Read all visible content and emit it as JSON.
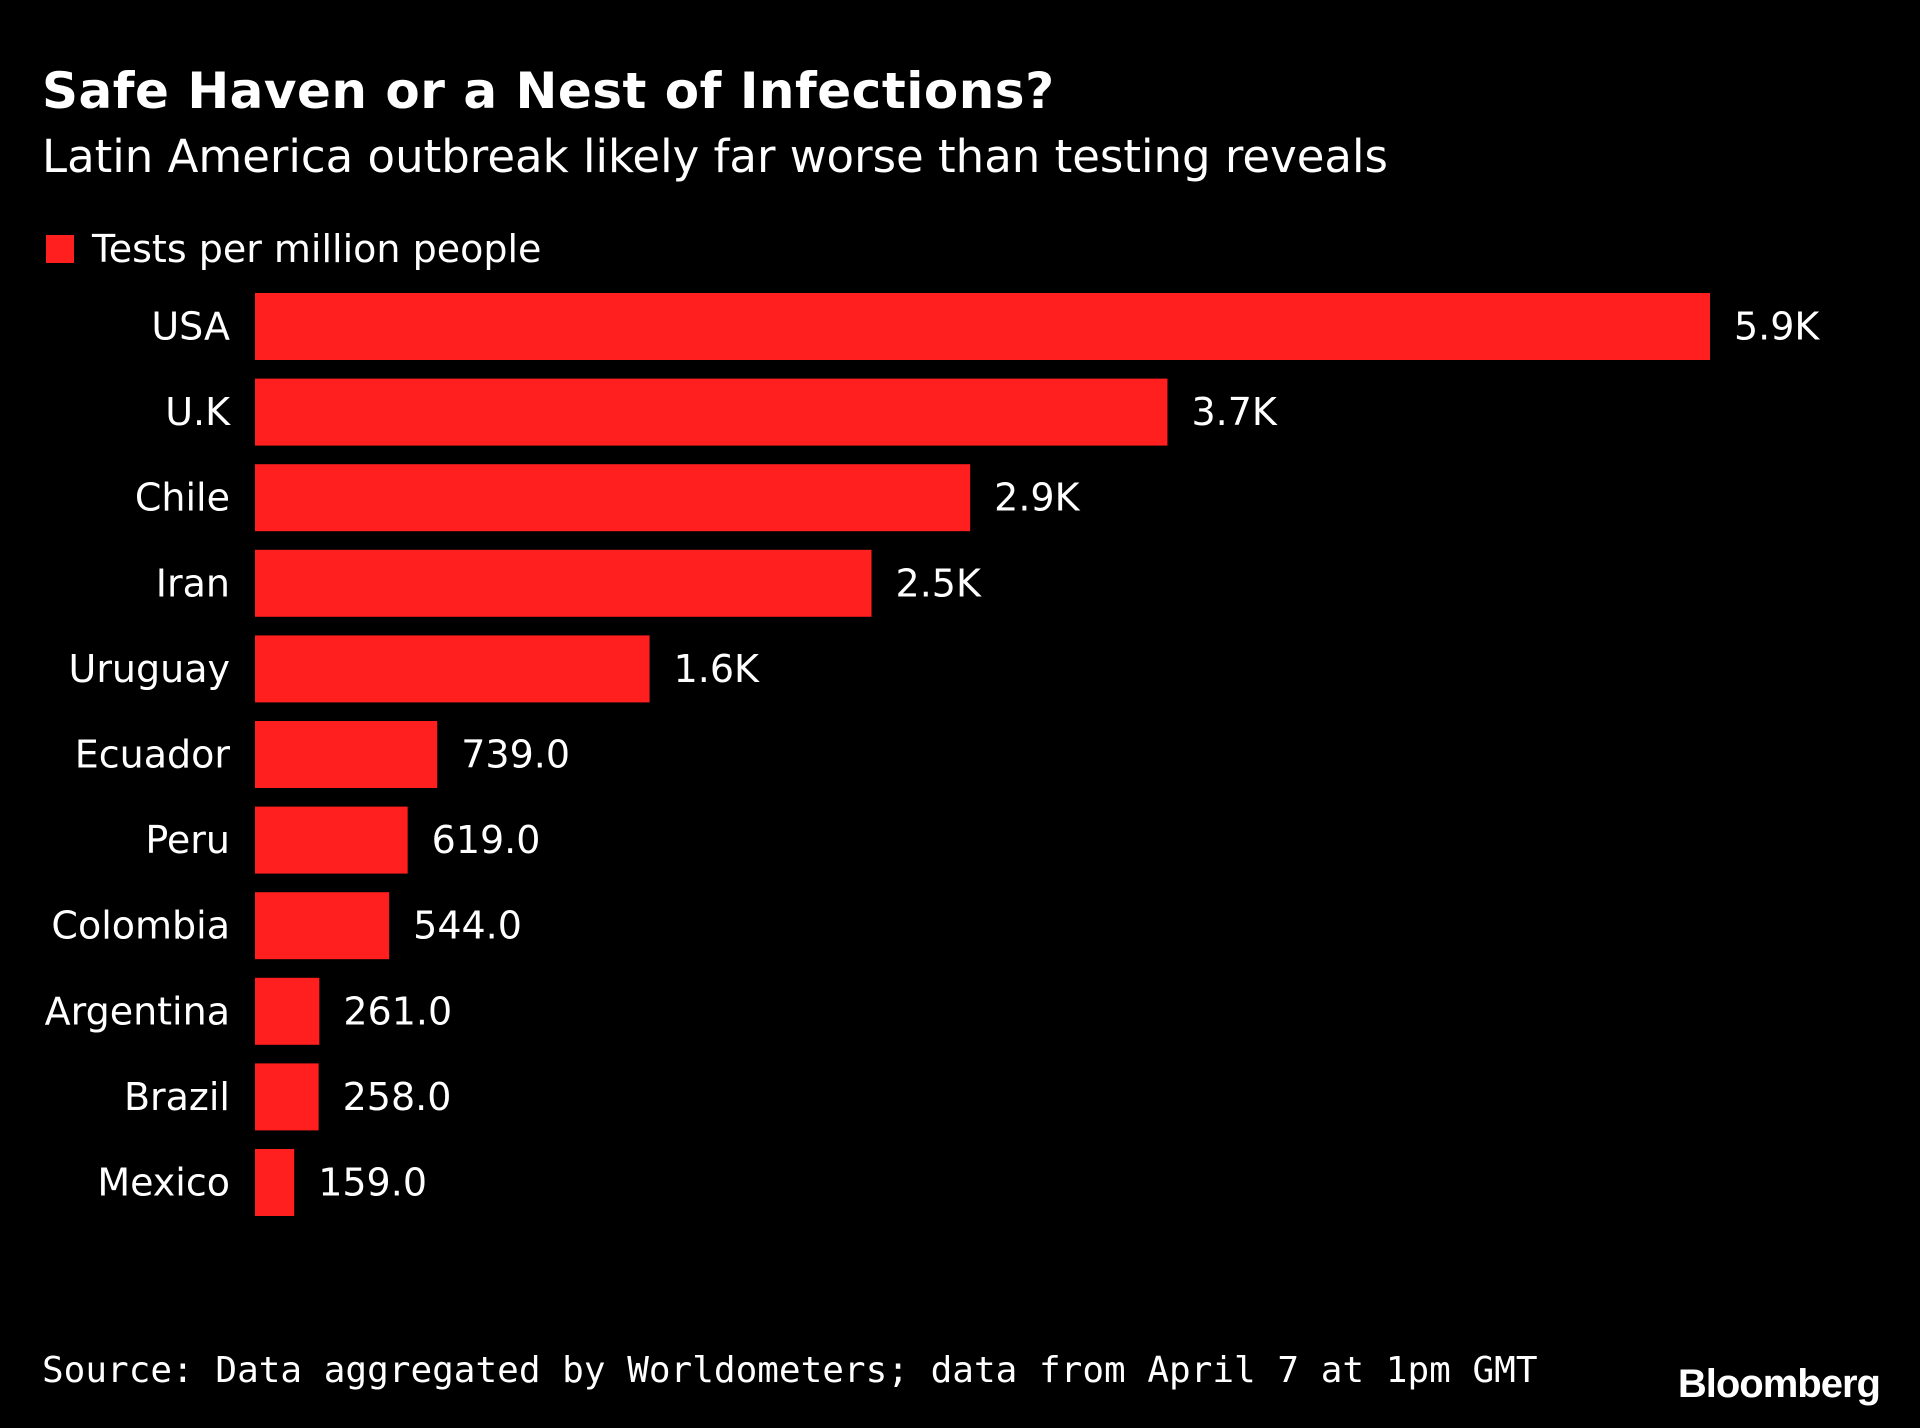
{
  "colors": {
    "background": "#000000",
    "bar": "#ff1f1f",
    "text": "#ffffff"
  },
  "header": {
    "title": "Safe Haven or a Nest of Infections?",
    "subtitle": "Latin America outbreak likely far worse than testing reveals"
  },
  "footer": {
    "source": "Source: Data aggregated by Worldometers; data from April 7 at 1pm GMT",
    "brand": "Bloomberg"
  },
  "chart_data": {
    "type": "bar",
    "orientation": "horizontal",
    "title": "Safe Haven or a Nest of Infections?",
    "subtitle": "Latin America outbreak likely far worse than testing reveals",
    "categories": [
      "USA",
      "U.K",
      "Chile",
      "Iran",
      "Uruguay",
      "Ecuador",
      "Peru",
      "Colombia",
      "Argentina",
      "Brazil",
      "Mexico"
    ],
    "series": [
      {
        "name": "Tests per million people",
        "color": "#ff1f1f",
        "values": [
          5900,
          3700,
          2900,
          2500,
          1600,
          739,
          619,
          544,
          261,
          258,
          159
        ],
        "labels": [
          "5.9K",
          "3.7K",
          "2.9K",
          "2.5K",
          "1.6K",
          "739.0",
          "619.0",
          "544.0",
          "261.0",
          "258.0",
          "159.0"
        ]
      }
    ],
    "legend": "top-left",
    "grid": false,
    "xlim": [
      0,
      5900
    ]
  }
}
